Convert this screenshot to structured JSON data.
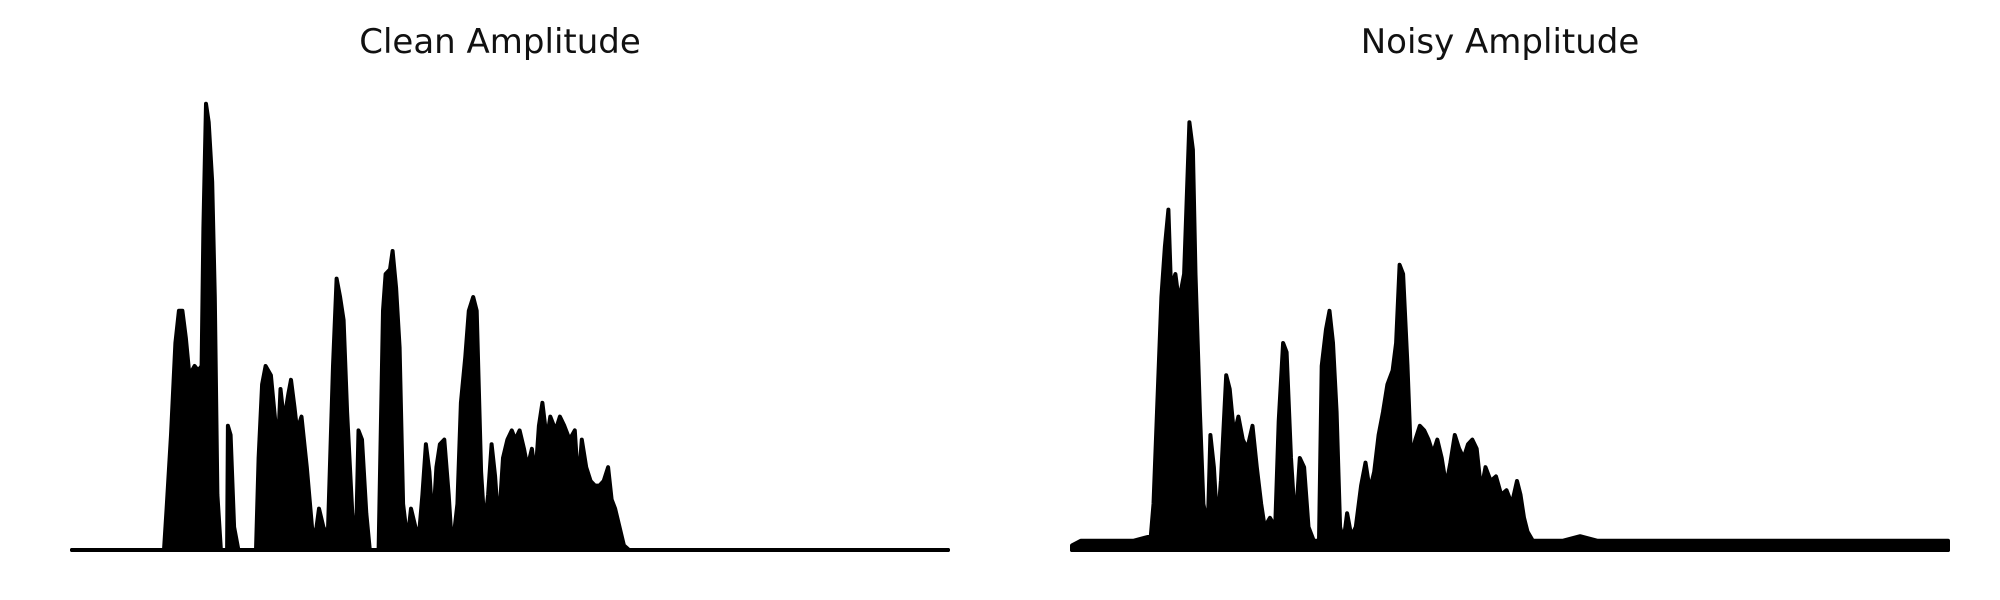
{
  "chart_data": [
    {
      "type": "area",
      "title": "Clean Amplitude",
      "xlabel": "",
      "ylabel": "",
      "axes_visible": false,
      "grid": false,
      "color": "#000000",
      "xlim": [
        0,
        1
      ],
      "ylim": [
        0,
        1
      ],
      "envelope": [
        [
          0.0,
          0.0
        ],
        [
          0.105,
          0.0
        ],
        [
          0.108,
          0.09
        ],
        [
          0.113,
          0.25
        ],
        [
          0.118,
          0.45
        ],
        [
          0.122,
          0.52
        ],
        [
          0.126,
          0.52
        ],
        [
          0.13,
          0.46
        ],
        [
          0.134,
          0.38
        ],
        [
          0.14,
          0.4
        ],
        [
          0.144,
          0.39
        ],
        [
          0.148,
          0.4
        ],
        [
          0.15,
          0.7
        ],
        [
          0.153,
          0.97
        ],
        [
          0.156,
          0.93
        ],
        [
          0.16,
          0.8
        ],
        [
          0.163,
          0.55
        ],
        [
          0.166,
          0.12
        ],
        [
          0.17,
          0.0
        ],
        [
          0.177,
          0.0
        ],
        [
          0.178,
          0.27
        ],
        [
          0.181,
          0.25
        ],
        [
          0.185,
          0.05
        ],
        [
          0.19,
          0.0
        ],
        [
          0.21,
          0.0
        ],
        [
          0.213,
          0.2
        ],
        [
          0.217,
          0.36
        ],
        [
          0.221,
          0.4
        ],
        [
          0.227,
          0.38
        ],
        [
          0.231,
          0.3
        ],
        [
          0.235,
          0.22
        ],
        [
          0.238,
          0.35
        ],
        [
          0.242,
          0.28
        ],
        [
          0.247,
          0.34
        ],
        [
          0.25,
          0.37
        ],
        [
          0.254,
          0.31
        ],
        [
          0.257,
          0.26
        ],
        [
          0.262,
          0.29
        ],
        [
          0.268,
          0.18
        ],
        [
          0.274,
          0.05
        ],
        [
          0.277,
          0.02
        ],
        [
          0.282,
          0.09
        ],
        [
          0.287,
          0.05
        ],
        [
          0.292,
          0.03
        ],
        [
          0.298,
          0.4
        ],
        [
          0.302,
          0.59
        ],
        [
          0.306,
          0.55
        ],
        [
          0.31,
          0.5
        ],
        [
          0.314,
          0.3
        ],
        [
          0.32,
          0.08
        ],
        [
          0.324,
          0.0
        ],
        [
          0.327,
          0.26
        ],
        [
          0.331,
          0.24
        ],
        [
          0.336,
          0.08
        ],
        [
          0.34,
          0.0
        ],
        [
          0.35,
          0.0
        ],
        [
          0.355,
          0.52
        ],
        [
          0.358,
          0.6
        ],
        [
          0.363,
          0.61
        ],
        [
          0.366,
          0.65
        ],
        [
          0.37,
          0.57
        ],
        [
          0.374,
          0.44
        ],
        [
          0.378,
          0.1
        ],
        [
          0.383,
          0.02
        ],
        [
          0.387,
          0.09
        ],
        [
          0.392,
          0.05
        ],
        [
          0.396,
          0.03
        ],
        [
          0.4,
          0.12
        ],
        [
          0.404,
          0.23
        ],
        [
          0.408,
          0.17
        ],
        [
          0.412,
          0.05
        ],
        [
          0.416,
          0.18
        ],
        [
          0.42,
          0.23
        ],
        [
          0.425,
          0.24
        ],
        [
          0.43,
          0.12
        ],
        [
          0.434,
          0.0
        ],
        [
          0.44,
          0.1
        ],
        [
          0.444,
          0.32
        ],
        [
          0.449,
          0.42
        ],
        [
          0.453,
          0.52
        ],
        [
          0.458,
          0.55
        ],
        [
          0.462,
          0.52
        ],
        [
          0.467,
          0.17
        ],
        [
          0.471,
          0.05
        ],
        [
          0.475,
          0.12
        ],
        [
          0.479,
          0.23
        ],
        [
          0.483,
          0.16
        ],
        [
          0.487,
          0.05
        ],
        [
          0.492,
          0.2
        ],
        [
          0.497,
          0.24
        ],
        [
          0.502,
          0.26
        ],
        [
          0.506,
          0.24
        ],
        [
          0.511,
          0.26
        ],
        [
          0.516,
          0.22
        ],
        [
          0.52,
          0.18
        ],
        [
          0.525,
          0.22
        ],
        [
          0.529,
          0.16
        ],
        [
          0.533,
          0.27
        ],
        [
          0.537,
          0.32
        ],
        [
          0.542,
          0.24
        ],
        [
          0.546,
          0.29
        ],
        [
          0.552,
          0.26
        ],
        [
          0.557,
          0.29
        ],
        [
          0.562,
          0.27
        ],
        [
          0.568,
          0.24
        ],
        [
          0.574,
          0.26
        ],
        [
          0.578,
          0.14
        ],
        [
          0.582,
          0.24
        ],
        [
          0.587,
          0.18
        ],
        [
          0.592,
          0.15
        ],
        [
          0.597,
          0.14
        ],
        [
          0.602,
          0.14
        ],
        [
          0.607,
          0.15
        ],
        [
          0.612,
          0.18
        ],
        [
          0.616,
          0.11
        ],
        [
          0.62,
          0.09
        ],
        [
          0.625,
          0.05
        ],
        [
          0.63,
          0.01
        ],
        [
          0.636,
          0.0
        ],
        [
          1.0,
          0.0
        ]
      ]
    },
    {
      "type": "area",
      "title": "Noisy Amplitude",
      "xlabel": "",
      "ylabel": "",
      "axes_visible": false,
      "grid": false,
      "color": "#000000",
      "xlim": [
        0,
        1
      ],
      "ylim": [
        0,
        1
      ],
      "envelope": [
        [
          0.0,
          0.01
        ],
        [
          0.01,
          0.02
        ],
        [
          0.04,
          0.02
        ],
        [
          0.07,
          0.02
        ],
        [
          0.09,
          0.03
        ],
        [
          0.093,
          0.1
        ],
        [
          0.097,
          0.3
        ],
        [
          0.102,
          0.55
        ],
        [
          0.106,
          0.66
        ],
        [
          0.11,
          0.74
        ],
        [
          0.113,
          0.57
        ],
        [
          0.118,
          0.6
        ],
        [
          0.122,
          0.54
        ],
        [
          0.128,
          0.6
        ],
        [
          0.134,
          0.93
        ],
        [
          0.138,
          0.87
        ],
        [
          0.141,
          0.6
        ],
        [
          0.146,
          0.3
        ],
        [
          0.15,
          0.1
        ],
        [
          0.155,
          0.05
        ],
        [
          0.158,
          0.25
        ],
        [
          0.162,
          0.18
        ],
        [
          0.166,
          0.05
        ],
        [
          0.17,
          0.15
        ],
        [
          0.176,
          0.38
        ],
        [
          0.18,
          0.35
        ],
        [
          0.185,
          0.25
        ],
        [
          0.19,
          0.29
        ],
        [
          0.195,
          0.24
        ],
        [
          0.2,
          0.22
        ],
        [
          0.206,
          0.27
        ],
        [
          0.211,
          0.18
        ],
        [
          0.216,
          0.1
        ],
        [
          0.22,
          0.05
        ],
        [
          0.226,
          0.07
        ],
        [
          0.232,
          0.05
        ],
        [
          0.236,
          0.28
        ],
        [
          0.241,
          0.45
        ],
        [
          0.245,
          0.43
        ],
        [
          0.25,
          0.2
        ],
        [
          0.255,
          0.05
        ],
        [
          0.26,
          0.2
        ],
        [
          0.265,
          0.18
        ],
        [
          0.27,
          0.05
        ],
        [
          0.276,
          0.02
        ],
        [
          0.282,
          0.02
        ],
        [
          0.285,
          0.4
        ],
        [
          0.29,
          0.48
        ],
        [
          0.294,
          0.52
        ],
        [
          0.298,
          0.45
        ],
        [
          0.302,
          0.3
        ],
        [
          0.306,
          0.05
        ],
        [
          0.31,
          0.02
        ],
        [
          0.314,
          0.08
        ],
        [
          0.319,
          0.03
        ],
        [
          0.324,
          0.05
        ],
        [
          0.33,
          0.14
        ],
        [
          0.335,
          0.19
        ],
        [
          0.34,
          0.13
        ],
        [
          0.345,
          0.17
        ],
        [
          0.35,
          0.25
        ],
        [
          0.355,
          0.3
        ],
        [
          0.36,
          0.36
        ],
        [
          0.366,
          0.39
        ],
        [
          0.37,
          0.45
        ],
        [
          0.374,
          0.62
        ],
        [
          0.378,
          0.6
        ],
        [
          0.383,
          0.4
        ],
        [
          0.387,
          0.2
        ],
        [
          0.392,
          0.24
        ],
        [
          0.397,
          0.27
        ],
        [
          0.402,
          0.26
        ],
        [
          0.407,
          0.24
        ],
        [
          0.412,
          0.21
        ],
        [
          0.417,
          0.24
        ],
        [
          0.422,
          0.2
        ],
        [
          0.427,
          0.14
        ],
        [
          0.432,
          0.19
        ],
        [
          0.437,
          0.25
        ],
        [
          0.442,
          0.22
        ],
        [
          0.447,
          0.2
        ],
        [
          0.452,
          0.23
        ],
        [
          0.457,
          0.24
        ],
        [
          0.462,
          0.22
        ],
        [
          0.467,
          0.13
        ],
        [
          0.472,
          0.18
        ],
        [
          0.478,
          0.15
        ],
        [
          0.484,
          0.16
        ],
        [
          0.49,
          0.12
        ],
        [
          0.496,
          0.13
        ],
        [
          0.502,
          0.1
        ],
        [
          0.508,
          0.15
        ],
        [
          0.512,
          0.12
        ],
        [
          0.516,
          0.07
        ],
        [
          0.52,
          0.04
        ],
        [
          0.526,
          0.02
        ],
        [
          0.54,
          0.02
        ],
        [
          0.56,
          0.02
        ],
        [
          0.58,
          0.03
        ],
        [
          0.6,
          0.02
        ],
        [
          0.62,
          0.02
        ],
        [
          0.64,
          0.02
        ],
        [
          0.66,
          0.02
        ],
        [
          0.68,
          0.02
        ],
        [
          0.7,
          0.02
        ],
        [
          0.72,
          0.02
        ],
        [
          0.74,
          0.02
        ],
        [
          0.76,
          0.02
        ],
        [
          0.78,
          0.02
        ],
        [
          0.8,
          0.02
        ],
        [
          0.82,
          0.02
        ],
        [
          0.84,
          0.02
        ],
        [
          0.86,
          0.02
        ],
        [
          0.88,
          0.02
        ],
        [
          0.9,
          0.02
        ],
        [
          0.92,
          0.02
        ],
        [
          0.94,
          0.02
        ],
        [
          0.96,
          0.02
        ],
        [
          0.98,
          0.02
        ],
        [
          1.0,
          0.02
        ]
      ]
    }
  ]
}
